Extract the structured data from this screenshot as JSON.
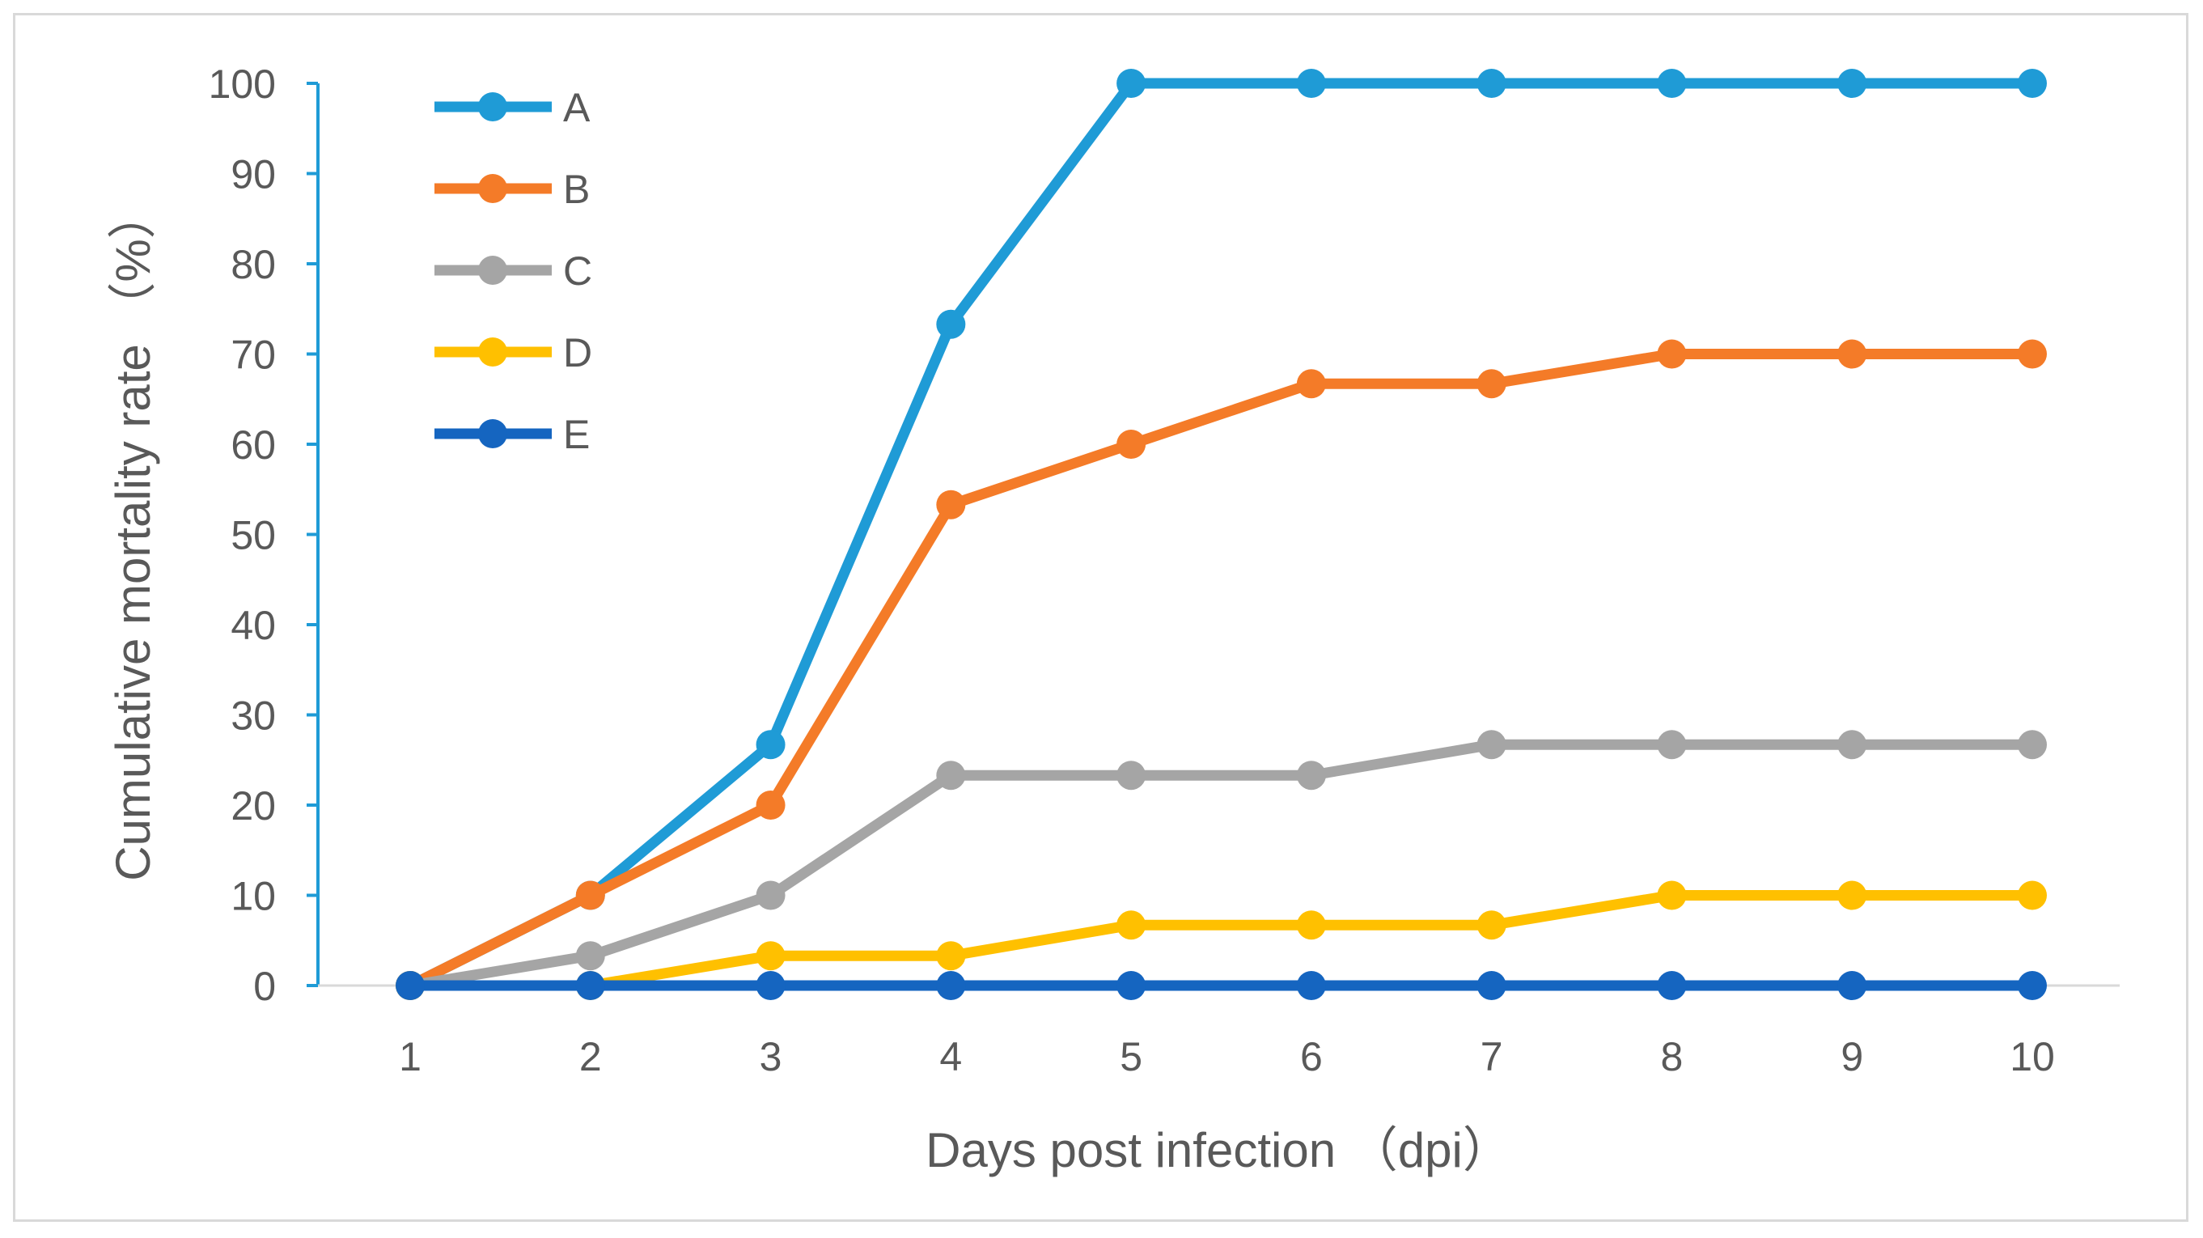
{
  "chart_data": {
    "type": "line",
    "title": "",
    "xlabel": "Days post infection （dpi）",
    "ylabel": "Cumulative mortality rate （%）",
    "categories": [
      "1",
      "2",
      "3",
      "4",
      "5",
      "6",
      "7",
      "8",
      "9",
      "10"
    ],
    "ylim": [
      0,
      100
    ],
    "yticks": [
      "0",
      "10",
      "20",
      "30",
      "40",
      "50",
      "60",
      "70",
      "80",
      "90",
      "100"
    ],
    "grid": false,
    "legend_position": "top-left",
    "series": [
      {
        "name": "A",
        "color": "#1f9bd6",
        "values": [
          0,
          10,
          26.7,
          73.3,
          100,
          100,
          100,
          100,
          100,
          100
        ]
      },
      {
        "name": "B",
        "color": "#f47b28",
        "values": [
          0,
          10,
          20,
          53.3,
          60,
          66.7,
          66.7,
          70,
          70,
          70
        ]
      },
      {
        "name": "C",
        "color": "#a5a5a5",
        "values": [
          0,
          3.3,
          10,
          23.3,
          23.3,
          23.3,
          26.7,
          26.7,
          26.7,
          26.7
        ]
      },
      {
        "name": "D",
        "color": "#ffc000",
        "values": [
          0,
          0,
          3.3,
          3.3,
          6.7,
          6.7,
          6.7,
          10,
          10,
          10
        ]
      },
      {
        "name": "E",
        "color": "#1565c0",
        "values": [
          0,
          0,
          0,
          0,
          0,
          0,
          0,
          0,
          0,
          0
        ]
      }
    ]
  }
}
